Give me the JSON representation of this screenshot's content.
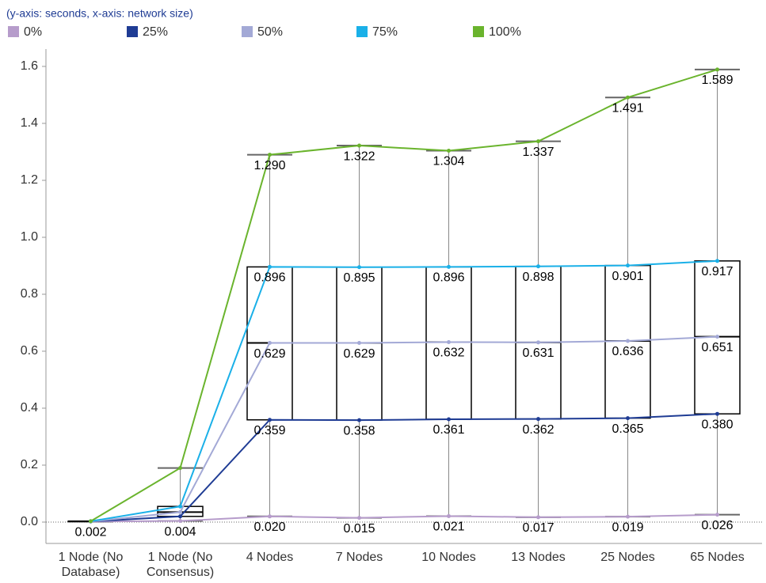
{
  "chart_data": {
    "type": "box",
    "subtitle": "(y-axis: seconds, x-axis: network size)",
    "categories": [
      "1 Node (No Database)",
      "1 Node (No Consensus)",
      "4 Nodes",
      "7 Nodes",
      "10 Nodes",
      "13 Nodes",
      "25 Nodes",
      "65 Nodes"
    ],
    "series": [
      {
        "name": "0%",
        "color": "#b69ccb",
        "values": [
          0.002,
          0.004,
          0.02,
          0.015,
          0.021,
          0.017,
          0.019,
          0.026
        ],
        "value_labels": [
          "0.002",
          "0.004",
          "0.020",
          "0.015",
          "0.021",
          "0.017",
          "0.019",
          "0.026"
        ]
      },
      {
        "name": "25%",
        "color": "#1f3c94",
        "values": [
          0.002,
          0.02,
          0.359,
          0.358,
          0.361,
          0.362,
          0.365,
          0.38
        ],
        "value_labels": [
          null,
          null,
          "0.359",
          "0.358",
          "0.361",
          "0.362",
          "0.365",
          "0.380"
        ]
      },
      {
        "name": "50%",
        "color": "#a3a9d6",
        "values": [
          0.002,
          0.035,
          0.629,
          0.629,
          0.632,
          0.631,
          0.636,
          0.651
        ],
        "value_labels": [
          null,
          null,
          "0.629",
          "0.629",
          "0.632",
          "0.631",
          "0.636",
          "0.651"
        ]
      },
      {
        "name": "75%",
        "color": "#1ab0e8",
        "values": [
          0.003,
          0.055,
          0.896,
          0.895,
          0.896,
          0.898,
          0.901,
          0.917
        ],
        "value_labels": [
          null,
          null,
          "0.896",
          "0.895",
          "0.896",
          "0.898",
          "0.901",
          "0.917"
        ]
      },
      {
        "name": "100%",
        "color": "#6ab42d",
        "values": [
          0.003,
          0.19,
          1.29,
          1.322,
          1.304,
          1.337,
          1.491,
          1.589
        ],
        "value_labels": [
          null,
          null,
          "1.290",
          "1.322",
          "1.304",
          "1.337",
          "1.491",
          "1.589"
        ]
      }
    ],
    "ylim": [
      -0.075,
      1.661
    ],
    "yticks": [
      {
        "value": 0,
        "label": "0.0"
      },
      0.2,
      0.4,
      0.6,
      0.8,
      {
        "value": 1,
        "label": "1.0"
      },
      1.2,
      1.4,
      1.6
    ]
  }
}
